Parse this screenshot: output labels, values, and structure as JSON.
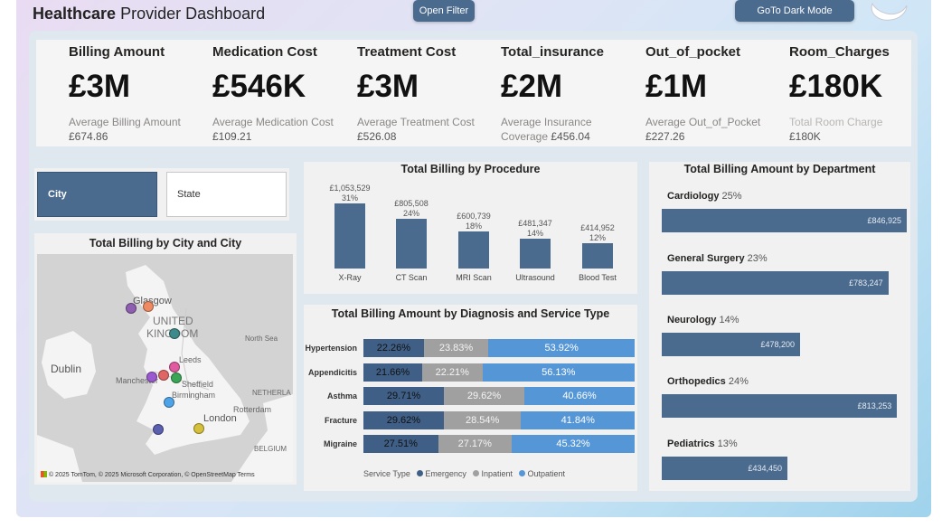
{
  "header": {
    "title_bold": "Healthcare",
    "title_rest": " Provider Dashboard",
    "open_filter": "Open Filter",
    "dark_mode": "GoTo Dark Mode"
  },
  "kpis": [
    {
      "title": "Billing Amount",
      "value": "£3M",
      "sub": "Average Billing Amount",
      "sub_value": "£674.86"
    },
    {
      "title": "Medication Cost",
      "value": "£546K",
      "sub": "Average Medication Cost",
      "sub_value": "£109.21"
    },
    {
      "title": "Treatment Cost",
      "value": "£3M",
      "sub": "Average Treatment Cost",
      "sub_value": "£526.08"
    },
    {
      "title": "Total_insurance",
      "value": "£2M",
      "sub": "Average Insurance",
      "sub2": "Coverage",
      "sub_value": "£456.04"
    },
    {
      "title": "Out_of_pocket",
      "value": "£1M",
      "sub": "Average Out_of_Pocket",
      "sub_value": "£227.26"
    },
    {
      "title": "Room_Charges",
      "value": "£180K",
      "sub": "Total Room Charge",
      "sub_value": "£180K"
    }
  ],
  "slicer": {
    "city": "City",
    "state": "State"
  },
  "map": {
    "title": "Total Billing by City and City",
    "labels": {
      "glasgow": "Glasgow",
      "uk1": "UNITED",
      "uk2": "KINGDOM",
      "north_sea": "North Sea",
      "dublin": "Dublin",
      "leeds": "Leeds",
      "manchester": "Manchester",
      "sheffield": "Sheffield",
      "birmingham": "Birmingham",
      "netherlands": "NETHERLA",
      "rotterdam": "Rotterdam",
      "london": "London",
      "belgium": "BELGIUM"
    },
    "credits": "© 2025 TomTom, © 2025 Microsoft Corporation, © OpenStreetMap  Terms"
  },
  "chart_data": [
    {
      "type": "bar",
      "title": "Total Billing by Procedure",
      "categories": [
        "X-Ray",
        "CT Scan",
        "MRI Scan",
        "Ultrasound",
        "Blood Test"
      ],
      "values": [
        1053529,
        805508,
        600739,
        481347,
        414952
      ],
      "value_labels": [
        "£1,053,529",
        "£805,508",
        "£600,739",
        "£481,347",
        "£414,952"
      ],
      "percent_labels": [
        "31%",
        "24%",
        "18%",
        "14%",
        "12%"
      ],
      "color": "#4a6a8e"
    },
    {
      "type": "bar",
      "stacked": true,
      "orientation": "horizontal",
      "title": "Total Billing Amount by Diagnosis and Service Type",
      "categories": [
        "Hypertension",
        "Appendicitis",
        "Asthma",
        "Fracture",
        "Migraine"
      ],
      "series": [
        {
          "name": "Emergency",
          "color": "#3f5f86",
          "values": [
            22.26,
            21.66,
            29.71,
            29.62,
            27.51
          ]
        },
        {
          "name": "Inpatient",
          "color": "#a0a0a0",
          "values": [
            23.83,
            22.21,
            29.62,
            28.54,
            27.17
          ]
        },
        {
          "name": "Outpatient",
          "color": "#5596d6",
          "values": [
            53.92,
            56.13,
            40.66,
            41.84,
            45.32
          ]
        }
      ],
      "legend_title": "Service Type",
      "legend_position": "bottom"
    },
    {
      "type": "bar",
      "orientation": "horizontal",
      "title": "Total Billing Amount by Department",
      "categories": [
        "Cardiology",
        "General Surgery",
        "Neurology",
        "Orthopedics",
        "Pediatrics"
      ],
      "values": [
        846925,
        783247,
        478200,
        813253,
        434450
      ],
      "value_labels": [
        "£846,925",
        "£783,247",
        "£478,200",
        "£813,253",
        "£434,450"
      ],
      "percent_labels": [
        "25%",
        "23%",
        "14%",
        "24%",
        "13%"
      ],
      "color": "#4a6a8e"
    }
  ]
}
